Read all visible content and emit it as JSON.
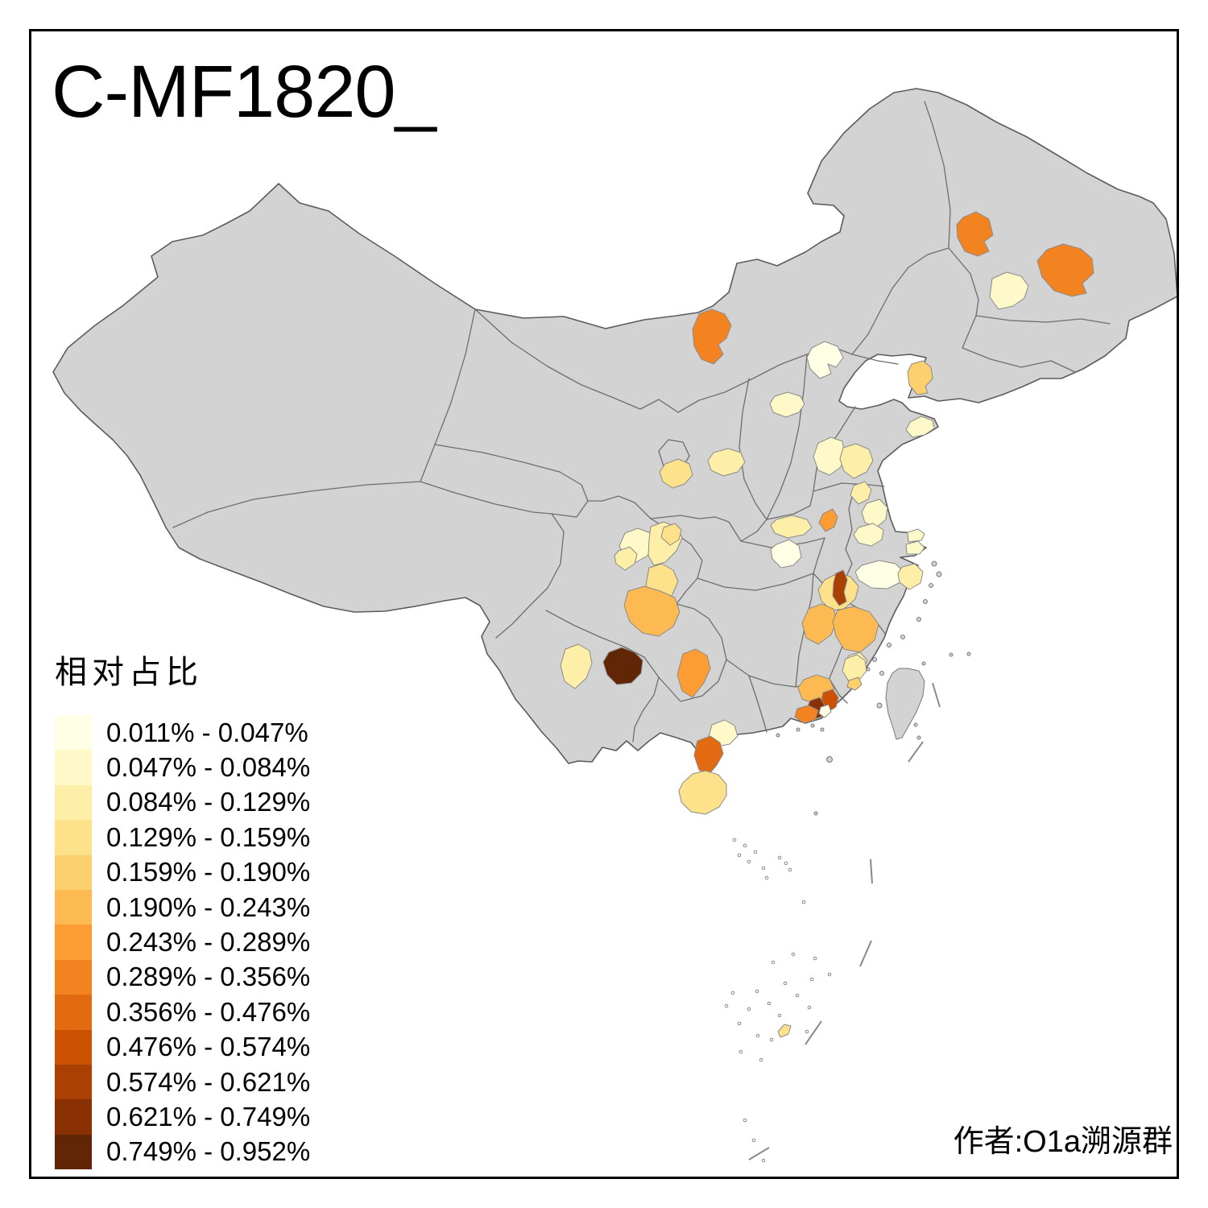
{
  "title": "C-MF1820_",
  "author": "作者:O1a溯源群",
  "legend": {
    "title": "相对占比",
    "classes": [
      {
        "label": "0.011% - 0.047%",
        "color": "#FFFFE5"
      },
      {
        "label": "0.047% - 0.084%",
        "color": "#FFF8C8"
      },
      {
        "label": "0.084% - 0.129%",
        "color": "#FEEFA8"
      },
      {
        "label": "0.129% - 0.159%",
        "color": "#FEE28B"
      },
      {
        "label": "0.159% - 0.190%",
        "color": "#FDD06E"
      },
      {
        "label": "0.190% - 0.243%",
        "color": "#FDBA52"
      },
      {
        "label": "0.243% - 0.289%",
        "color": "#FD9C33"
      },
      {
        "label": "0.289% - 0.356%",
        "color": "#F38321"
      },
      {
        "label": "0.356% - 0.476%",
        "color": "#E26A11"
      },
      {
        "label": "0.476% - 0.574%",
        "color": "#CC5103"
      },
      {
        "label": "0.574% - 0.621%",
        "color": "#AB4004"
      },
      {
        "label": "0.621% - 0.749%",
        "color": "#8A3104"
      },
      {
        "label": "0.749% - 0.952%",
        "color": "#612606"
      }
    ]
  },
  "map": {
    "base_fill": "#D3D3D3",
    "sea_fill": "#FFFFFF",
    "boundary_color": "#6E6E6E",
    "regions": [
      {
        "id": "r01",
        "class": 8,
        "range": "0.289% - 0.356%"
      },
      {
        "id": "r02",
        "class": 8,
        "range": "0.289% - 0.356%"
      },
      {
        "id": "r03",
        "class": 2,
        "range": "0.047% - 0.084%"
      },
      {
        "id": "r04",
        "class": 5,
        "range": "0.159% - 0.190%"
      },
      {
        "id": "r05",
        "class": 8,
        "range": "0.289% - 0.356%"
      },
      {
        "id": "r06",
        "class": 1,
        "range": "0.011% - 0.047%"
      },
      {
        "id": "r07",
        "class": 2,
        "range": "0.047% - 0.084%"
      },
      {
        "id": "r08",
        "class": 2,
        "range": "0.047% - 0.084%"
      },
      {
        "id": "r09",
        "class": 2,
        "range": "0.047% - 0.084%"
      },
      {
        "id": "r10",
        "class": 3,
        "range": "0.084% - 0.129%"
      },
      {
        "id": "r11",
        "class": 4,
        "range": "0.129% - 0.159%"
      },
      {
        "id": "r12",
        "class": 3,
        "range": "0.084% - 0.129%"
      },
      {
        "id": "r13",
        "class": 3,
        "range": "0.084% - 0.129%"
      },
      {
        "id": "r14",
        "class": 7,
        "range": "0.243% - 0.289%"
      },
      {
        "id": "r15",
        "class": 1,
        "range": "0.011% - 0.047%"
      },
      {
        "id": "r16",
        "class": 3,
        "range": "0.084% - 0.129%"
      },
      {
        "id": "r17",
        "class": 2,
        "range": "0.047% - 0.084%"
      },
      {
        "id": "r18",
        "class": 2,
        "range": "0.047% - 0.084%"
      },
      {
        "id": "r19",
        "class": 2,
        "range": "0.047% - 0.084%"
      },
      {
        "id": "r20",
        "class": 2,
        "range": "0.047% - 0.084%"
      },
      {
        "id": "r21",
        "class": 1,
        "range": "0.011% - 0.047%"
      },
      {
        "id": "r22",
        "class": 3,
        "range": "0.084% - 0.129%"
      },
      {
        "id": "r24",
        "class": 4,
        "range": "0.129% - 0.159%"
      },
      {
        "id": "r23",
        "class": 11,
        "range": "0.574% - 0.621%"
      },
      {
        "id": "r25",
        "class": 6,
        "range": "0.190% - 0.243%"
      },
      {
        "id": "r26",
        "class": 6,
        "range": "0.190% - 0.243%"
      },
      {
        "id": "r27",
        "class": 3,
        "range": "0.084% - 0.129%"
      },
      {
        "id": "r28",
        "class": 2,
        "range": "0.047% - 0.084%"
      },
      {
        "id": "r29",
        "class": 3,
        "range": "0.084% - 0.129%"
      },
      {
        "id": "r30",
        "class": 3,
        "range": "0.084% - 0.129%"
      },
      {
        "id": "r31",
        "class": 4,
        "range": "0.129% - 0.159%"
      },
      {
        "id": "r32",
        "class": 6,
        "range": "0.190% - 0.243%"
      },
      {
        "id": "r33",
        "class": 3,
        "range": "0.084% - 0.129%"
      },
      {
        "id": "r34",
        "class": 13,
        "range": "0.749% - 0.952%"
      },
      {
        "id": "r35",
        "class": 7,
        "range": "0.243% - 0.289%"
      },
      {
        "id": "r36",
        "class": 6,
        "range": "0.190% - 0.243%"
      },
      {
        "id": "r37",
        "class": 10,
        "range": "0.476% - 0.574%"
      },
      {
        "id": "r38",
        "class": 12,
        "range": "0.621% - 0.749%"
      },
      {
        "id": "r39",
        "class": 1,
        "range": "0.011% - 0.047%"
      },
      {
        "id": "r40",
        "class": 8,
        "range": "0.289% - 0.356%"
      },
      {
        "id": "r41",
        "class": 3,
        "range": "0.084% - 0.129%"
      },
      {
        "id": "r42",
        "class": 5,
        "range": "0.159% - 0.190%"
      },
      {
        "id": "r43",
        "class": 2,
        "range": "0.047% - 0.084%"
      },
      {
        "id": "r44",
        "class": 9,
        "range": "0.356% - 0.476%"
      },
      {
        "id": "r45",
        "class": 4,
        "range": "0.129% - 0.159%"
      },
      {
        "id": "r46",
        "class": 4,
        "range": "0.129% - 0.159%"
      },
      {
        "id": "r47",
        "class": 4,
        "range": "0.129% - 0.159%"
      }
    ]
  }
}
